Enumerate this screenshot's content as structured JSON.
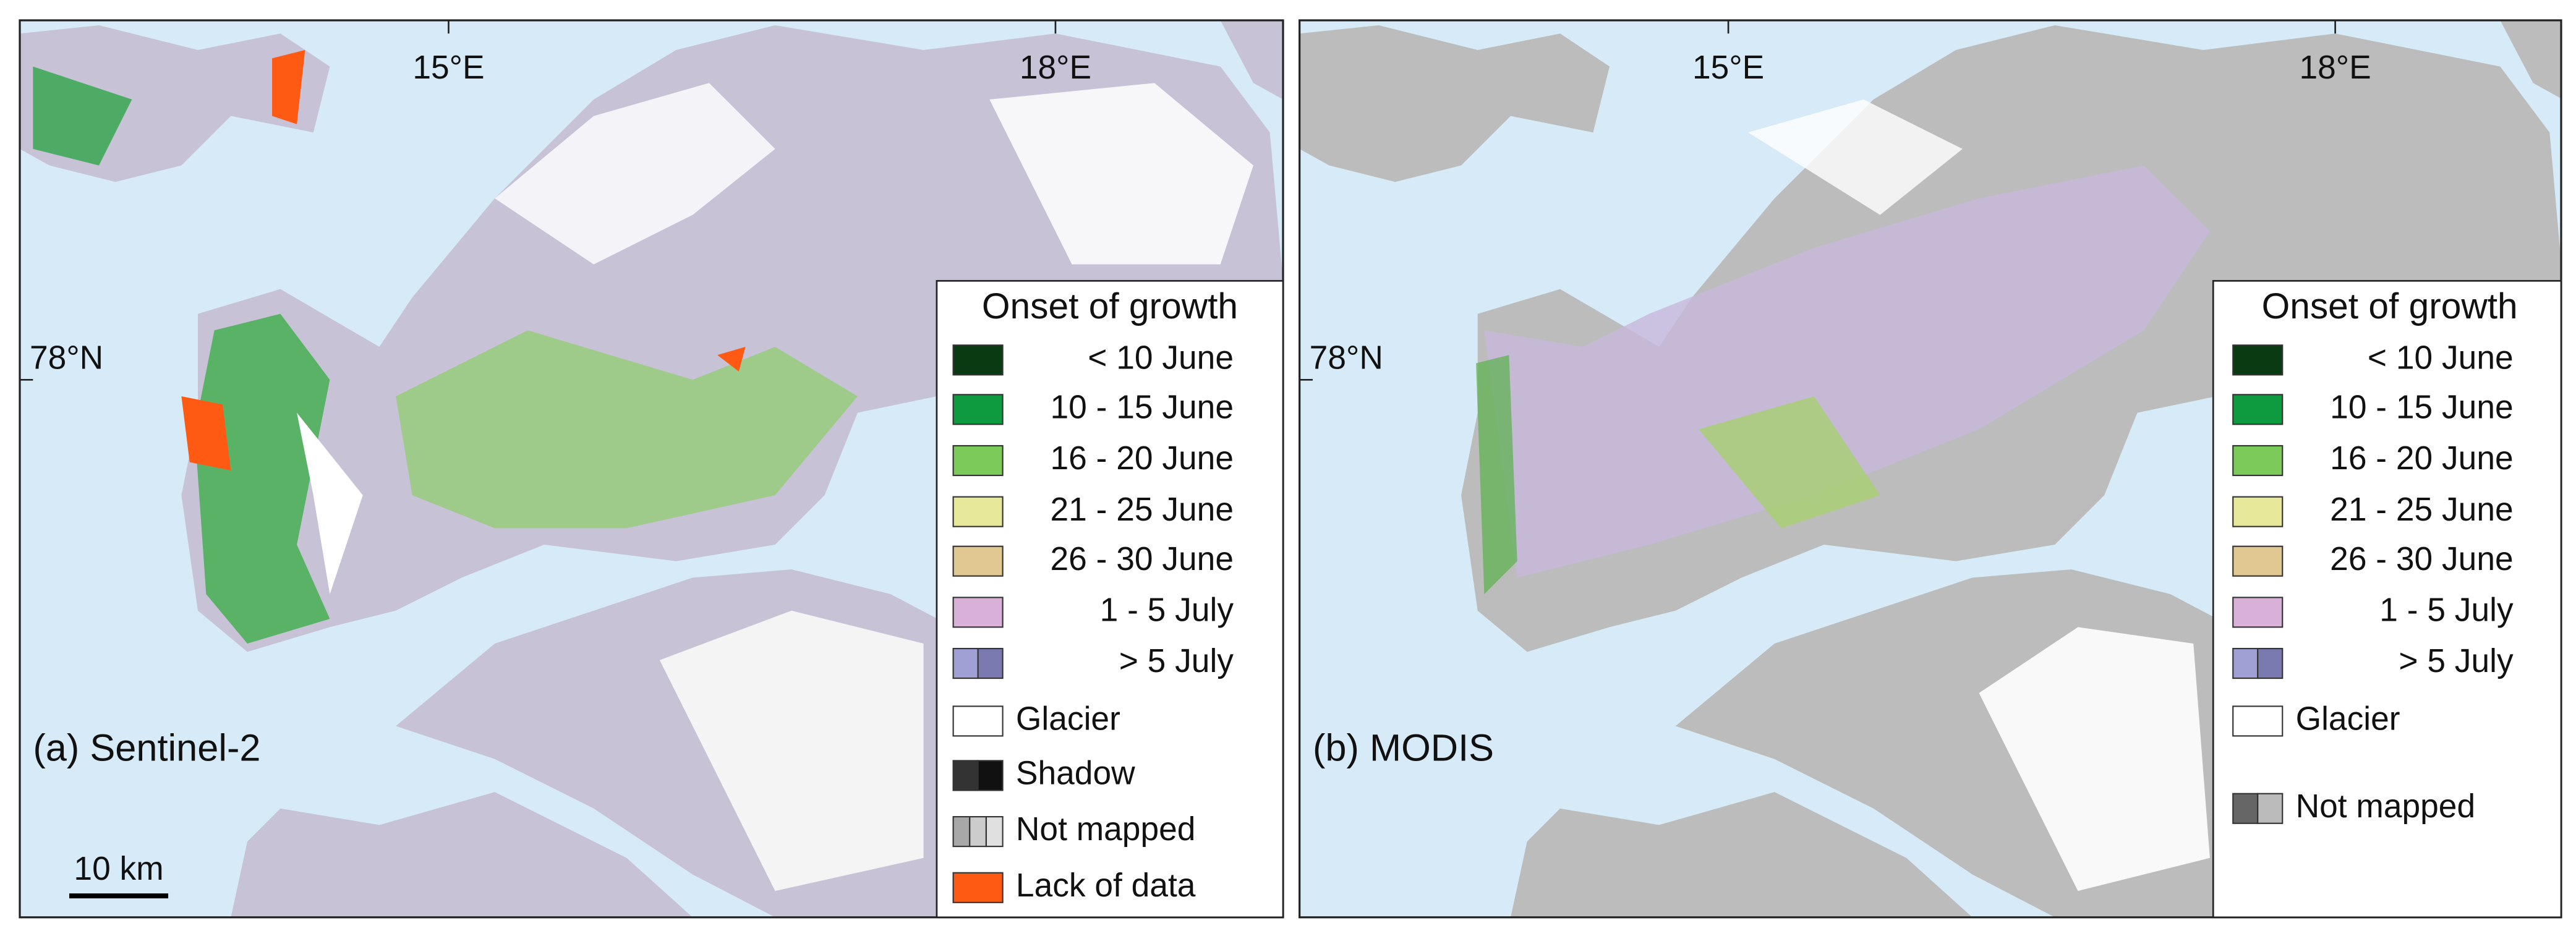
{
  "panels": [
    {
      "label": "(a) Sentinel-2",
      "lon_labels": [
        "15°E",
        "18°E"
      ],
      "lat_label": "78°N",
      "scale_bar": "10 km",
      "legend": {
        "title": "Onset of growth",
        "items": [
          {
            "label": "< 10 June",
            "colors": [
              "#0a3a12"
            ]
          },
          {
            "label": "10 - 15 June",
            "colors": [
              "#0e9a3e"
            ]
          },
          {
            "label": "16 - 20 June",
            "colors": [
              "#7ccb5a"
            ]
          },
          {
            "label": "21 - 25 June",
            "colors": [
              "#e8e89a"
            ]
          },
          {
            "label": "26 - 30 June",
            "colors": [
              "#e0c890"
            ]
          },
          {
            "label": "1 - 5 July",
            "colors": [
              "#d8b0d8"
            ]
          },
          {
            "label": "> 5 July",
            "colors": [
              "#a0a0d4",
              "#7a7ab0"
            ]
          },
          {
            "label": "Glacier",
            "colors": [
              "#ffffff"
            ]
          },
          {
            "label": "Shadow",
            "colors": [
              "#333333",
              "#111111"
            ]
          },
          {
            "label": "Not mapped",
            "colors": [
              "#a8a8a8",
              "#cccccc",
              "#e0e0e0"
            ]
          },
          {
            "label": "Lack of data",
            "colors": [
              "#ff5a14"
            ]
          }
        ]
      }
    },
    {
      "label": "(b) MODIS",
      "lon_labels": [
        "15°E",
        "18°E"
      ],
      "lat_label": "78°N",
      "legend": {
        "title": "Onset of growth",
        "items": [
          {
            "label": "< 10 June",
            "colors": [
              "#0a3a12"
            ]
          },
          {
            "label": "10 - 15 June",
            "colors": [
              "#0e9a3e"
            ]
          },
          {
            "label": "16 - 20 June",
            "colors": [
              "#7ccb5a"
            ]
          },
          {
            "label": "21 - 25 June",
            "colors": [
              "#e8e89a"
            ]
          },
          {
            "label": "26 - 30 June",
            "colors": [
              "#e0c890"
            ]
          },
          {
            "label": "1 - 5 July",
            "colors": [
              "#d8b0d8"
            ]
          },
          {
            "label": "> 5 July",
            "colors": [
              "#a0a0d4",
              "#7a7ab0"
            ]
          },
          {
            "label": "Glacier",
            "colors": [
              "#ffffff"
            ]
          },
          {
            "label": "Not mapped",
            "colors": [
              "#666666",
              "#bbbbbb"
            ]
          }
        ]
      }
    }
  ]
}
